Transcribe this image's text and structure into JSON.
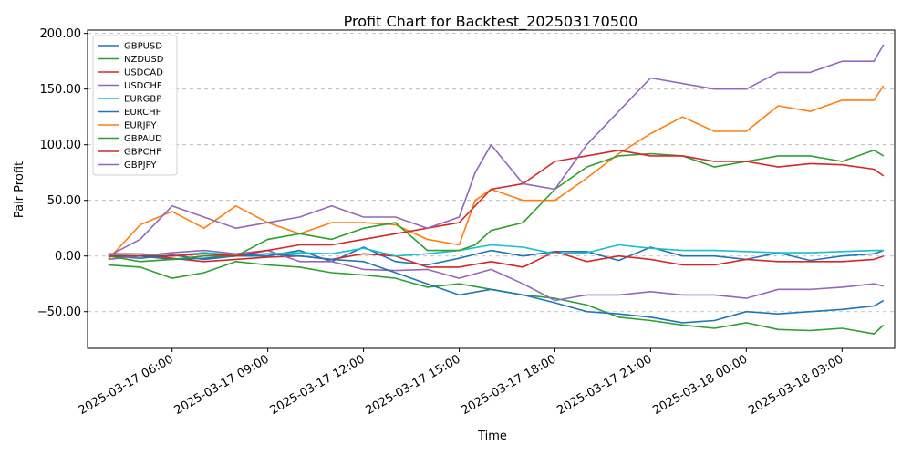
{
  "chart_data": {
    "type": "line",
    "title": "Profit Chart for Backtest_202503170500",
    "xlabel": "Time",
    "ylabel": "Pair Profit",
    "x_tick_labels": [
      "2025-03-17 06:00",
      "2025-03-17 09:00",
      "2025-03-17 12:00",
      "2025-03-17 15:00",
      "2025-03-17 18:00",
      "2025-03-17 21:00",
      "2025-03-18 00:00",
      "2025-03-18 03:00"
    ],
    "x_tick_hours": [
      6,
      9,
      12,
      15,
      18,
      21,
      24,
      27
    ],
    "x_range_hours": [
      3.35,
      28.65
    ],
    "y_ticks": [
      -50,
      0,
      50,
      100,
      150,
      200
    ],
    "y_tick_labels": [
      "−50.00",
      "0.00",
      "50.00",
      "100.00",
      "150.00",
      "200.00"
    ],
    "ylim": [
      -83,
      203
    ],
    "grid": "horizontal dashed",
    "legend_position": "top-left",
    "series": [
      {
        "name": "GBPUSD",
        "color": "#1f77b4",
        "x": [
          4,
          5,
          6,
          7,
          8,
          9,
          10,
          11,
          12,
          13,
          14,
          15,
          16,
          17,
          18,
          19,
          20,
          21,
          22,
          23,
          24,
          25,
          26,
          27,
          28,
          28.3
        ],
        "y": [
          0,
          -2,
          1,
          -3,
          0,
          0,
          5,
          -5,
          8,
          -5,
          -8,
          -2,
          5,
          0,
          4,
          4,
          -4,
          8,
          0,
          0,
          -3,
          3,
          -4,
          0,
          2,
          5
        ]
      },
      {
        "name": "NZDUSD",
        "color": "#2ca02c",
        "x": [
          4,
          5,
          6,
          7,
          8,
          9,
          10,
          11,
          12,
          13,
          14,
          15,
          16,
          17,
          18,
          19,
          20,
          21,
          22,
          23,
          24,
          25,
          26,
          27,
          28,
          28.3
        ],
        "y": [
          -8,
          -10,
          -20,
          -15,
          -5,
          -8,
          -10,
          -15,
          -17,
          -20,
          -28,
          -25,
          -30,
          -35,
          -38,
          -44,
          -55,
          -58,
          -62,
          -65,
          -60,
          -66,
          -67,
          -65,
          -70,
          -62
        ]
      },
      {
        "name": "USDCAD",
        "color": "#d62728",
        "x": [
          4,
          5,
          6,
          7,
          8,
          9,
          10,
          11,
          12,
          13,
          14,
          15,
          16,
          17,
          18,
          19,
          20,
          21,
          22,
          23,
          24,
          25,
          26,
          27,
          28,
          28.3
        ],
        "y": [
          2,
          2,
          -2,
          -5,
          -3,
          -1,
          0,
          -3,
          2,
          0,
          -10,
          -10,
          -5,
          -10,
          4,
          -5,
          0,
          -3,
          -8,
          -8,
          -3,
          -5,
          -5,
          -5,
          -3,
          0
        ]
      },
      {
        "name": "USDCHF",
        "color": "#9467bd",
        "x": [
          4,
          5,
          6,
          7,
          8,
          9,
          10,
          11,
          12,
          13,
          14,
          15,
          16,
          17,
          18,
          19,
          20,
          21,
          22,
          23,
          24,
          25,
          26,
          27,
          28,
          28.3
        ],
        "y": [
          -3,
          0,
          3,
          5,
          2,
          5,
          -5,
          -5,
          -12,
          -13,
          -12,
          -20,
          -12,
          -25,
          -40,
          -35,
          -35,
          -32,
          -35,
          -35,
          -38,
          -30,
          -30,
          -28,
          -25,
          -27
        ]
      },
      {
        "name": "EURGBP",
        "color": "#17becf",
        "x": [
          4,
          5,
          6,
          7,
          8,
          9,
          10,
          11,
          12,
          13,
          14,
          15,
          16,
          17,
          18,
          19,
          20,
          21,
          22,
          23,
          24,
          25,
          26,
          27,
          28,
          28.3
        ],
        "y": [
          1,
          2,
          0,
          3,
          1,
          2,
          3,
          2,
          7,
          0,
          2,
          5,
          10,
          8,
          2,
          3,
          10,
          7,
          5,
          5,
          4,
          3,
          3,
          4,
          5,
          5
        ]
      },
      {
        "name": "EURCHF",
        "color": "#1f77b4",
        "x": [
          4,
          5,
          6,
          7,
          8,
          9,
          10,
          11,
          12,
          13,
          14,
          15,
          16,
          17,
          18,
          19,
          20,
          21,
          22,
          23,
          24,
          25,
          26,
          27,
          28,
          28.3
        ],
        "y": [
          0,
          0,
          -3,
          -2,
          0,
          2,
          0,
          -3,
          -5,
          -15,
          -25,
          -35,
          -30,
          -35,
          -42,
          -50,
          -52,
          -55,
          -60,
          -58,
          -50,
          -52,
          -50,
          -48,
          -45,
          -40
        ]
      },
      {
        "name": "EURJPY",
        "color": "#ff7f0e",
        "x": [
          4,
          5,
          6,
          7,
          8,
          9,
          10,
          11,
          12,
          13,
          14,
          15,
          15.5,
          16,
          17,
          18,
          19,
          20,
          21,
          22,
          23,
          24,
          25,
          26,
          27,
          28,
          28.3
        ],
        "y": [
          -3,
          28,
          40,
          25,
          45,
          30,
          20,
          30,
          30,
          28,
          15,
          10,
          50,
          60,
          50,
          50,
          70,
          92,
          110,
          125,
          112,
          112,
          135,
          130,
          140,
          140,
          153
        ]
      },
      {
        "name": "GBPAUD",
        "color": "#2ca02c",
        "x": [
          4,
          5,
          6,
          7,
          8,
          9,
          10,
          11,
          12,
          13,
          14,
          15,
          15.5,
          16,
          17,
          18,
          19,
          20,
          21,
          22,
          23,
          24,
          25,
          26,
          27,
          28,
          28.3
        ],
        "y": [
          0,
          -5,
          -3,
          0,
          0,
          15,
          20,
          15,
          25,
          30,
          5,
          5,
          10,
          23,
          30,
          60,
          80,
          90,
          92,
          90,
          80,
          85,
          90,
          90,
          85,
          95,
          90
        ]
      },
      {
        "name": "GBPCHF",
        "color": "#d62728",
        "x": [
          4,
          5,
          6,
          7,
          8,
          9,
          10,
          11,
          12,
          13,
          14,
          15,
          15.5,
          16,
          17,
          18,
          19,
          20,
          21,
          22,
          23,
          24,
          25,
          26,
          27,
          28,
          28.3
        ],
        "y": [
          0,
          0,
          0,
          2,
          0,
          5,
          10,
          10,
          15,
          20,
          25,
          30,
          45,
          60,
          65,
          85,
          90,
          95,
          90,
          90,
          85,
          85,
          80,
          83,
          82,
          78,
          72
        ]
      },
      {
        "name": "GBPJPY",
        "color": "#9467bd",
        "x": [
          4,
          5,
          6,
          7,
          8,
          9,
          10,
          11,
          12,
          13,
          14,
          15,
          15.5,
          16,
          17,
          18,
          19,
          20,
          21,
          22,
          23,
          24,
          25,
          26,
          27,
          28,
          28.3
        ],
        "y": [
          0,
          15,
          45,
          35,
          25,
          30,
          35,
          45,
          35,
          35,
          25,
          35,
          75,
          100,
          65,
          60,
          100,
          130,
          160,
          155,
          150,
          150,
          165,
          165,
          175,
          175,
          190
        ]
      }
    ]
  }
}
